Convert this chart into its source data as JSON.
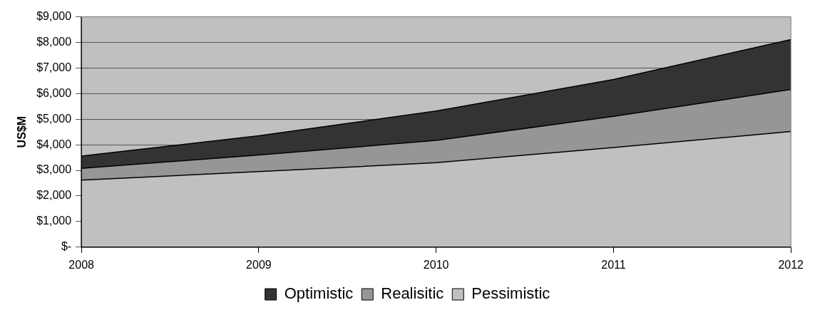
{
  "chart_data": {
    "type": "area",
    "ylabel": "US$M",
    "x": [
      2008,
      2009,
      2010,
      2011,
      2012
    ],
    "xlim": [
      2008,
      2012
    ],
    "xticks": [
      2008,
      2009,
      2010,
      2011,
      2012
    ],
    "ylim": [
      0,
      9000
    ],
    "yticks": [
      {
        "value": 0,
        "label": "$-"
      },
      {
        "value": 1000,
        "label": "$1,000"
      },
      {
        "value": 2000,
        "label": "$2,000"
      },
      {
        "value": 3000,
        "label": "$3,000"
      },
      {
        "value": 4000,
        "label": "$4,000"
      },
      {
        "value": 5000,
        "label": "$5,000"
      },
      {
        "value": 6000,
        "label": "$6,000"
      },
      {
        "value": 7000,
        "label": "$7,000"
      },
      {
        "value": 8000,
        "label": "$8,000"
      },
      {
        "value": 9000,
        "label": "$9,000"
      }
    ],
    "grid": "y",
    "legend": "bottom",
    "series": [
      {
        "name": "Optimistic",
        "color": "#333333",
        "values": [
          3560,
          4350,
          5320,
          6550,
          8110
        ]
      },
      {
        "name": "Realisitic",
        "color": "#969696",
        "values": [
          3080,
          3600,
          4170,
          5110,
          6160
        ]
      },
      {
        "name": "Pessimistic",
        "color": "#c0c0c0",
        "values": [
          2620,
          2950,
          3300,
          3890,
          4520
        ]
      }
    ]
  }
}
